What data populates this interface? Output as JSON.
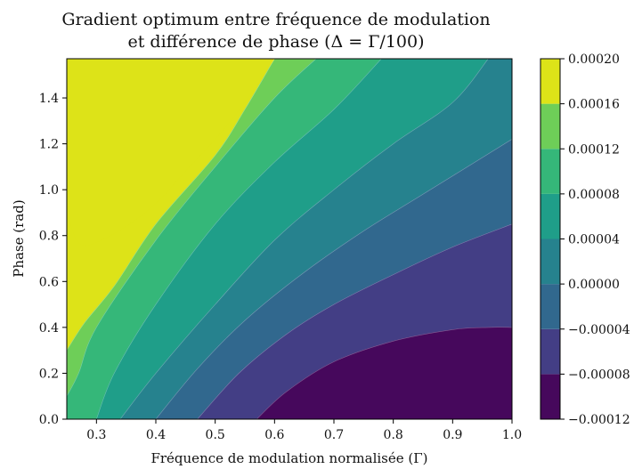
{
  "chart_data": {
    "type": "heatmap",
    "title_line1": "Gradient optimum entre fréquence de modulation",
    "title_line2": "et différence de phase (Δ = Γ/100)",
    "xlabel": "Fréquence de modulation normalisée (Γ)",
    "ylabel": "Phase (rad)",
    "xlim": [
      0.25,
      1.0
    ],
    "ylim": [
      0.0,
      1.5708
    ],
    "x_ticks": [
      "0.3",
      "0.4",
      "0.5",
      "0.6",
      "0.7",
      "0.8",
      "0.9",
      "1.0"
    ],
    "x_tick_values": [
      0.3,
      0.4,
      0.5,
      0.6,
      0.7,
      0.8,
      0.9,
      1.0
    ],
    "y_ticks": [
      "0.0",
      "0.2",
      "0.4",
      "0.6",
      "0.8",
      "1.0",
      "1.2",
      "1.4"
    ],
    "y_tick_values": [
      0.0,
      0.2,
      0.4,
      0.6,
      0.8,
      1.0,
      1.2,
      1.4
    ],
    "levels": [
      -0.00012,
      -8e-05,
      -4e-05,
      0.0,
      4e-05,
      8e-05,
      0.00012,
      0.00016,
      0.0002
    ],
    "colorbar_labels": [
      "−0.00012",
      "−0.00008",
      "−0.00004",
      "0.00000",
      "0.00004",
      "0.00008",
      "0.00012",
      "0.00016",
      "0.00020"
    ],
    "band_colors": [
      "#46085c",
      "#433e85",
      "#31688e",
      "#26828e",
      "#1f9e89",
      "#35b779",
      "#6ece58",
      "#dde318"
    ],
    "contour_boundaries": [
      {
        "upper_level": -8e-05,
        "points": [
          [
            0.57,
            0.0
          ],
          [
            0.62,
            0.12
          ],
          [
            0.7,
            0.25
          ],
          [
            0.8,
            0.34
          ],
          [
            0.9,
            0.39
          ],
          [
            0.96,
            0.4
          ],
          [
            1.0,
            0.4
          ]
        ]
      },
      {
        "upper_level": -4e-05,
        "points": [
          [
            0.47,
            0.0
          ],
          [
            0.54,
            0.2
          ],
          [
            0.62,
            0.37
          ],
          [
            0.7,
            0.5
          ],
          [
            0.8,
            0.63
          ],
          [
            0.9,
            0.75
          ],
          [
            1.0,
            0.85
          ]
        ]
      },
      {
        "upper_level": 0.0,
        "points": [
          [
            0.4,
            0.0
          ],
          [
            0.47,
            0.22
          ],
          [
            0.55,
            0.43
          ],
          [
            0.65,
            0.64
          ],
          [
            0.75,
            0.82
          ],
          [
            0.85,
            0.98
          ],
          [
            1.0,
            1.22
          ]
        ]
      },
      {
        "upper_level": 4e-05,
        "points": [
          [
            0.34,
            0.0
          ],
          [
            0.4,
            0.2
          ],
          [
            0.5,
            0.5
          ],
          [
            0.6,
            0.78
          ],
          [
            0.7,
            1.0
          ],
          [
            0.8,
            1.2
          ],
          [
            0.9,
            1.38
          ],
          [
            0.96,
            1.5708
          ]
        ]
      },
      {
        "upper_level": 8e-05,
        "points": [
          [
            0.3,
            0.0
          ],
          [
            0.33,
            0.2
          ],
          [
            0.4,
            0.5
          ],
          [
            0.5,
            0.85
          ],
          [
            0.6,
            1.12
          ],
          [
            0.7,
            1.35
          ],
          [
            0.78,
            1.5708
          ]
        ]
      },
      {
        "upper_level": 0.00012,
        "points": [
          [
            0.25,
            0.1
          ],
          [
            0.27,
            0.2
          ],
          [
            0.3,
            0.4
          ],
          [
            0.4,
            0.78
          ],
          [
            0.5,
            1.1
          ],
          [
            0.6,
            1.4
          ],
          [
            0.67,
            1.5708
          ]
        ]
      },
      {
        "upper_level": 0.00016,
        "points": [
          [
            0.25,
            0.3
          ],
          [
            0.28,
            0.42
          ],
          [
            0.33,
            0.58
          ],
          [
            0.4,
            0.85
          ],
          [
            0.5,
            1.15
          ],
          [
            0.55,
            1.35
          ],
          [
            0.6,
            1.5708
          ]
        ]
      }
    ],
    "top_region": {
      "upper_level": 0.0002,
      "points": [
        [
          0.255,
          1.5708
        ],
        [
          0.25,
          1.35
        ],
        [
          0.253,
          0.95
        ],
        [
          0.26,
          0.82
        ],
        [
          0.275,
          0.76
        ],
        [
          0.3,
          0.77
        ],
        [
          0.35,
          0.84
        ],
        [
          0.4,
          0.94
        ],
        [
          0.45,
          1.08
        ],
        [
          0.5,
          1.22
        ],
        [
          0.55,
          1.38
        ],
        [
          0.6,
          1.5708
        ]
      ]
    }
  }
}
